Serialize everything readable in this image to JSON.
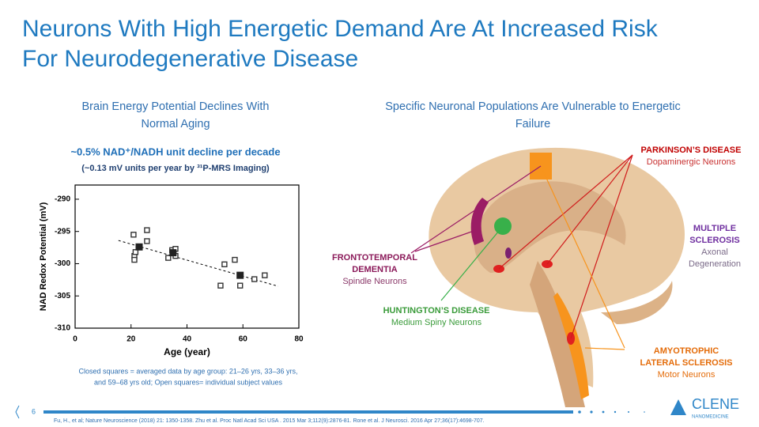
{
  "header": {
    "title": [
      "Neurons With High Energetic Demand Are At Increased Risk",
      "For Neurodegenerative Disease"
    ]
  },
  "left_panel": {
    "heading": [
      "Brain Energy Potential Declines With",
      "Normal Aging"
    ],
    "highlight": "~0.5% NAD⁺/NADH unit decline per decade",
    "subhighlight": "(~0.13 mV units per year by ³¹P-MRS Imaging)",
    "caption": [
      "Closed squares = averaged data by age group: 21–26 yrs, 33–36 yrs,",
      "and 59–68 yrs old; Open squares=  individual subject values"
    ]
  },
  "chart_data": {
    "type": "scatter",
    "xlabel": "Age (year)",
    "ylabel": "NAD Redox Potential (mV)",
    "xlim": [
      0,
      80
    ],
    "xticks": [
      0,
      20,
      40,
      60,
      80
    ],
    "ylim": [
      -310,
      -287.8
    ],
    "yticks": [
      -310,
      -305,
      -300,
      -295,
      -290
    ],
    "series": [
      {
        "marker": "open",
        "color": "#333333",
        "x": [
          20.9,
          25.7,
          25.7,
          21.2,
          21.2,
          21.6,
          33.3,
          34.7,
          35.9,
          35.9,
          53.4,
          57.1,
          52.0,
          59.0,
          64.1,
          67.8
        ],
        "values": [
          -295.5,
          -294.8,
          -296.5,
          -298.8,
          -299.4,
          -298.2,
          -299.1,
          -297.9,
          -297.7,
          -298.8,
          -300.1,
          -299.4,
          -303.4,
          -303.4,
          -302.4,
          -301.8
        ]
      },
      {
        "marker": "closed",
        "color": "#222222",
        "x": [
          22.9,
          35.0,
          59.0
        ],
        "values": [
          -297.4,
          -298.3,
          -301.8
        ]
      }
    ],
    "trend_line": {
      "x": [
        15.5,
        72.6
      ],
      "values": [
        -296.4,
        -303.5
      ]
    }
  },
  "diagram": {
    "heading": [
      "Specific Neuronal Populations Are Vulnerable to Energetic",
      "Failure"
    ],
    "labels": [
      {
        "title": [
          "PARKINSON’S DISEASE"
        ],
        "subtitle": [
          "Dopaminergic Neurons"
        ]
      },
      {
        "title": [
          "MULTIPLE",
          "SCLEROSIS"
        ],
        "subtitle": [
          "Axonal",
          "Degeneration"
        ]
      },
      {
        "title": [
          "FRONTOTEMPORAL",
          "DEMENTIA"
        ],
        "subtitle": [
          "Spindle Neurons"
        ]
      },
      {
        "title": [
          "HUNTINGTON’S DISEASE"
        ],
        "subtitle": [
          "Medium Spiny Neurons"
        ]
      },
      {
        "title": [
          "AMYOTROPHIC",
          "LATERAL SCLEROSIS"
        ],
        "subtitle": [
          "Motor Neurons"
        ]
      }
    ]
  },
  "footer": {
    "page": "6",
    "references": "Fu, H., et al; Nature Neuroscience (2018) 21: 1350-1358. Zhu et al. Proc Natl Acad Sci USA . 2015 Mar 3;112(9):2876-81.  Rone et al. J Neurosci. 2016 Apr 27;36(17):4698-707.",
    "logo": "CLENE",
    "logo_sub": "NANOMEDICINE"
  }
}
